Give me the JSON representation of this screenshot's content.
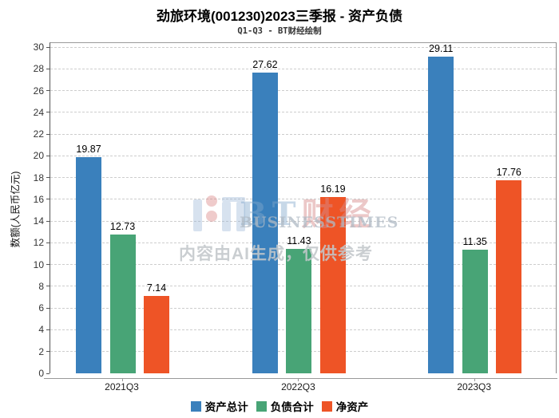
{
  "title": "劲旅环境(001230)2023三季报 - 资产负债",
  "subtitle": "Q1-Q3 - BT财经绘制",
  "watermark": {
    "brand_latin": "BT",
    "brand_cjk": "财经",
    "brand_en": "BUSINESSTIMES",
    "disclaimer": "内容由AI生成，仅供参考"
  },
  "chart_data": {
    "type": "bar",
    "title": "劲旅环境(001230)2023三季报 - 资产负债",
    "subtitle": "Q1-Q3 - BT财经绘制",
    "categories": [
      "2021Q3",
      "2022Q3",
      "2023Q3"
    ],
    "series": [
      {
        "name": "资产总计",
        "color": "#3a80bc",
        "values": [
          19.87,
          27.62,
          29.11
        ]
      },
      {
        "name": "负债合计",
        "color": "#48a476",
        "values": [
          12.73,
          11.43,
          11.35
        ]
      },
      {
        "name": "净资产",
        "color": "#ee5426",
        "values": [
          7.14,
          16.19,
          17.76
        ]
      }
    ],
    "xlabel": "",
    "ylabel": "数额(人民币亿元)",
    "ylim": [
      0,
      30
    ],
    "ytick_step": 2,
    "grid": true,
    "grid_style": "dashed",
    "legend_position": "bottom",
    "value_labels_decimals": 2
  }
}
